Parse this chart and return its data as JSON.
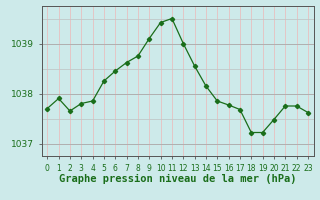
{
  "hours": [
    0,
    1,
    2,
    3,
    4,
    5,
    6,
    7,
    8,
    9,
    10,
    11,
    12,
    13,
    14,
    15,
    16,
    17,
    18,
    19,
    20,
    21,
    22,
    23
  ],
  "pressure": [
    1037.7,
    1037.9,
    1037.65,
    1037.8,
    1037.85,
    1038.25,
    1038.45,
    1038.62,
    1038.75,
    1039.1,
    1039.42,
    1039.5,
    1039.0,
    1038.55,
    1038.15,
    1037.85,
    1037.77,
    1037.68,
    1037.22,
    1037.22,
    1037.48,
    1037.75,
    1037.75,
    1037.62
  ],
  "line_color": "#1a6e1a",
  "marker": "D",
  "marker_size": 2.2,
  "bg_color": "#cdeaea",
  "grid_color_major": "#b0b0b0",
  "grid_color_minor": "#dde8e8",
  "xlabel": "Graphe pression niveau de la mer (hPa)",
  "xlabel_color": "#1a6e1a",
  "ylim": [
    1036.75,
    1039.75
  ],
  "yticks": [
    1037,
    1038,
    1039
  ],
  "xticks": [
    0,
    1,
    2,
    3,
    4,
    5,
    6,
    7,
    8,
    9,
    10,
    11,
    12,
    13,
    14,
    15,
    16,
    17,
    18,
    19,
    20,
    21,
    22,
    23
  ],
  "xtick_labels": [
    "0",
    "1",
    "2",
    "3",
    "4",
    "5",
    "6",
    "7",
    "8",
    "9",
    "10",
    "11",
    "12",
    "13",
    "14",
    "15",
    "16",
    "17",
    "18",
    "19",
    "20",
    "21",
    "22",
    "23"
  ],
  "axis_color": "#555555",
  "xlabel_fontsize": 7.5,
  "tick_fontsize": 5.5,
  "ytick_fontsize": 6.5,
  "vgrid_color": "#e8c0c0",
  "hgrid_color": "#c0c8c8"
}
